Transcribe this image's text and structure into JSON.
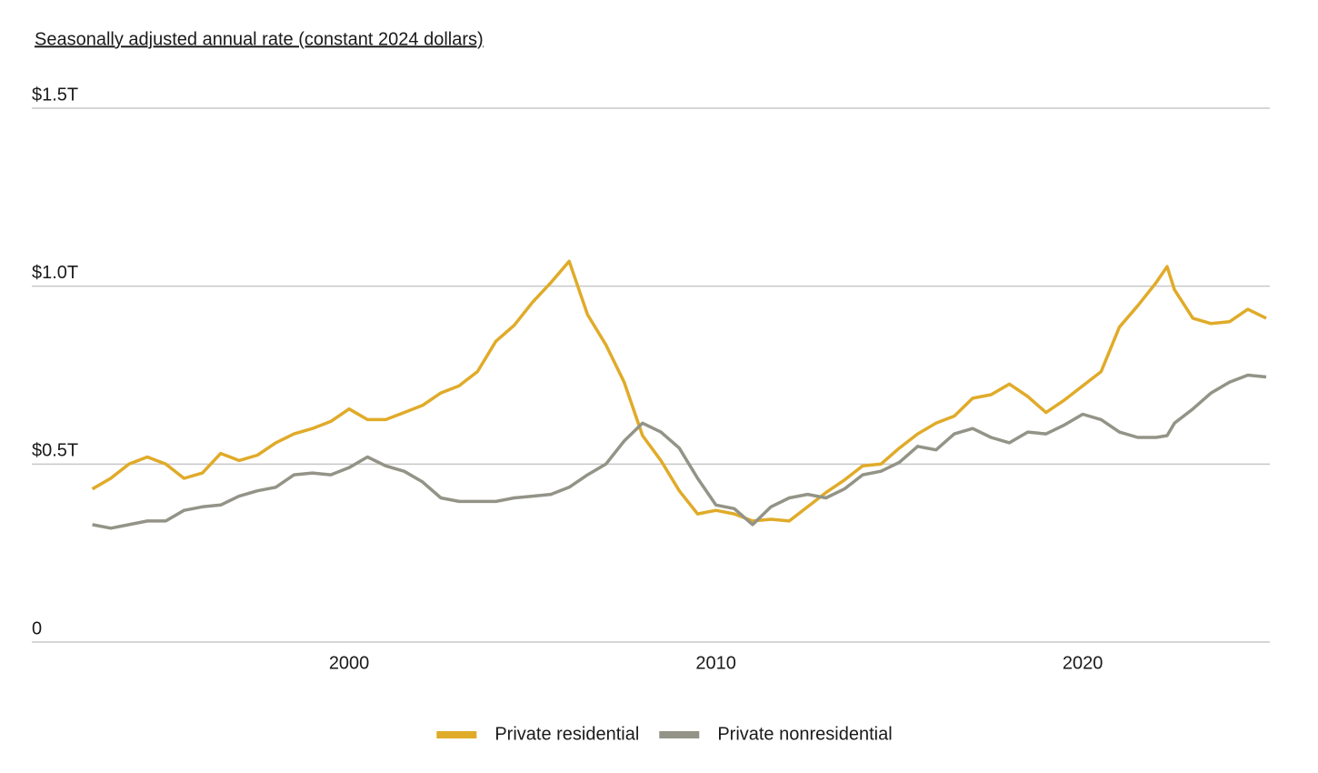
{
  "chart_data": {
    "type": "line",
    "title": "Seasonally adjusted annual rate (constant 2024 dollars)",
    "x": [
      1993.0,
      1993.5,
      1994.0,
      1994.5,
      1995.0,
      1995.5,
      1996.0,
      1996.5,
      1997.0,
      1997.5,
      1998.0,
      1998.5,
      1999.0,
      1999.5,
      2000.0,
      2000.5,
      2001.0,
      2001.5,
      2002.0,
      2002.5,
      2003.0,
      2003.5,
      2004.0,
      2004.5,
      2005.0,
      2005.5,
      2006.0,
      2006.5,
      2007.0,
      2007.5,
      2008.0,
      2008.5,
      2009.0,
      2009.5,
      2010.0,
      2010.5,
      2011.0,
      2011.5,
      2012.0,
      2012.5,
      2013.0,
      2013.5,
      2014.0,
      2014.5,
      2015.0,
      2015.5,
      2016.0,
      2016.5,
      2017.0,
      2017.5,
      2018.0,
      2018.5,
      2019.0,
      2019.5,
      2020.0,
      2020.5,
      2021.0,
      2021.5,
      2022.0,
      2022.3,
      2022.5,
      2023.0,
      2023.5,
      2024.0,
      2024.5,
      2025.0
    ],
    "series": [
      {
        "name": "Private residential",
        "color": "#e0ab29",
        "values": [
          0.43,
          0.46,
          0.5,
          0.52,
          0.5,
          0.46,
          0.475,
          0.53,
          0.51,
          0.525,
          0.56,
          0.585,
          0.6,
          0.62,
          0.655,
          0.625,
          0.625,
          0.645,
          0.665,
          0.7,
          0.72,
          0.76,
          0.845,
          0.89,
          0.955,
          1.01,
          1.07,
          0.92,
          0.835,
          0.73,
          0.58,
          0.51,
          0.425,
          0.36,
          0.37,
          0.36,
          0.34,
          0.345,
          0.34,
          0.38,
          0.42,
          0.455,
          0.495,
          0.5,
          0.545,
          0.585,
          0.615,
          0.635,
          0.685,
          0.695,
          0.725,
          0.69,
          0.645,
          0.68,
          0.72,
          0.76,
          0.885,
          0.945,
          1.01,
          1.055,
          0.99,
          0.91,
          0.895,
          0.9,
          0.935,
          0.91
        ]
      },
      {
        "name": "Private nonresidential",
        "color": "#939387",
        "values": [
          0.33,
          0.32,
          0.33,
          0.34,
          0.34,
          0.37,
          0.38,
          0.385,
          0.41,
          0.425,
          0.435,
          0.47,
          0.475,
          0.47,
          0.49,
          0.52,
          0.495,
          0.48,
          0.45,
          0.405,
          0.395,
          0.395,
          0.395,
          0.405,
          0.41,
          0.415,
          0.435,
          0.47,
          0.5,
          0.565,
          0.615,
          0.59,
          0.545,
          0.46,
          0.385,
          0.375,
          0.33,
          0.38,
          0.405,
          0.415,
          0.405,
          0.43,
          0.47,
          0.48,
          0.505,
          0.55,
          0.54,
          0.585,
          0.6,
          0.575,
          0.56,
          0.59,
          0.585,
          0.61,
          0.64,
          0.625,
          0.59,
          0.575,
          0.575,
          0.58,
          0.615,
          0.655,
          0.7,
          0.73,
          0.75,
          0.745
        ]
      }
    ],
    "xlim": [
      1991.35,
      2025.1
    ],
    "xticks": [
      2000,
      2010,
      2020
    ],
    "ylim": [
      0,
      1.5
    ],
    "yticks": [
      0,
      {
        "value": 0.5,
        "label": "$0.5T"
      },
      {
        "value": 1.0,
        "label": "$1.0T"
      },
      {
        "value": 1.5,
        "label": "$1.5T"
      }
    ],
    "grid": true,
    "legend": "bottom"
  }
}
